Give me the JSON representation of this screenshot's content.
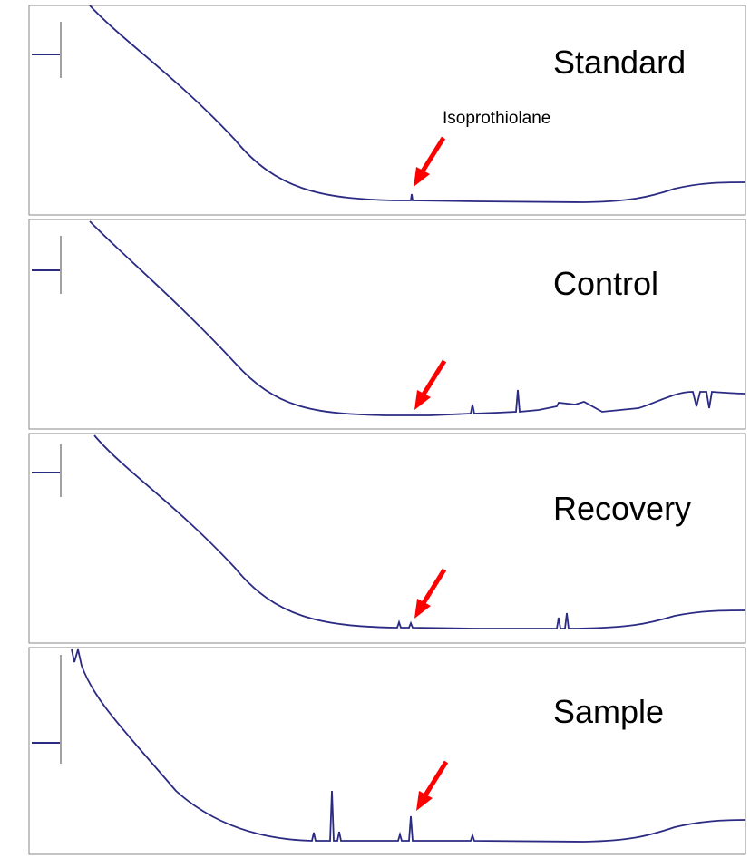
{
  "chart_data": [
    {
      "type": "line",
      "panel_label": "Standard",
      "annotation": "Isoprothiolane",
      "series": [
        {
          "values": [
            [
              0.25,
              150
            ],
            [
              0.4,
              148
            ],
            [
              0.8,
              130
            ],
            [
              1.6,
              98
            ],
            [
              2.6,
              62
            ],
            [
              3.4,
              45
            ],
            [
              4.3,
              35
            ],
            [
              5.2,
              33
            ],
            [
              6.3,
              33
            ],
            [
              6.6,
              33
            ],
            [
              6.7,
              37
            ],
            [
              6.8,
              33
            ],
            [
              7.6,
              34
            ],
            [
              8.8,
              34
            ],
            [
              9.4,
              37
            ],
            [
              10.0,
              43
            ],
            [
              10.9,
              45
            ],
            [
              11.0,
              45
            ]
          ]
        }
      ],
      "color": "#2b2b83",
      "arrow_color": "#ff0000",
      "arrow_at": 6.7
    },
    {
      "type": "line",
      "panel_label": "Control",
      "series": [
        {
          "values": [
            [
              0.25,
              150
            ],
            [
              0.4,
              148
            ],
            [
              0.8,
              130
            ],
            [
              1.6,
              98
            ],
            [
              2.6,
              62
            ],
            [
              3.4,
              45
            ],
            [
              4.3,
              35
            ],
            [
              5.2,
              33
            ],
            [
              6.3,
              33
            ],
            [
              7.6,
              34
            ],
            [
              8.8,
              34
            ],
            [
              9.4,
              37
            ],
            [
              10.0,
              43
            ],
            [
              10.9,
              45
            ],
            [
              11.0,
              45
            ]
          ]
        }
      ],
      "color": "#2b2b83",
      "arrow_color": "#ff0000",
      "arrow_at": 6.7
    },
    {
      "type": "line",
      "panel_label": "Recovery",
      "series": [
        {
          "values": [
            [
              0.25,
              150
            ],
            [
              0.4,
              148
            ],
            [
              0.8,
              130
            ],
            [
              1.6,
              98
            ],
            [
              2.6,
              62
            ],
            [
              3.4,
              45
            ],
            [
              4.3,
              35
            ],
            [
              5.2,
              33
            ],
            [
              6.3,
              33
            ],
            [
              6.4,
              35
            ],
            [
              6.5,
              33
            ],
            [
              6.6,
              33
            ],
            [
              6.7,
              35
            ],
            [
              6.8,
              33
            ],
            [
              7.6,
              34
            ],
            [
              8.8,
              34
            ],
            [
              9.4,
              37
            ],
            [
              10.0,
              43
            ],
            [
              10.9,
              45
            ],
            [
              11.0,
              45
            ]
          ]
        }
      ],
      "color": "#2b2b83",
      "arrow_color": "#ff0000",
      "arrow_at": 6.7
    },
    {
      "type": "line",
      "panel_label": "Sample",
      "series": [
        {
          "values": [
            [
              0.25,
              150
            ],
            [
              0.4,
              148
            ],
            [
              0.8,
              130
            ],
            [
              1.6,
              98
            ],
            [
              2.6,
              62
            ],
            [
              3.4,
              45
            ],
            [
              4.3,
              35
            ],
            [
              5.2,
              33
            ],
            [
              6.3,
              33
            ],
            [
              6.6,
              33
            ],
            [
              6.7,
              45
            ],
            [
              6.8,
              33
            ],
            [
              7.6,
              34
            ],
            [
              8.8,
              34
            ],
            [
              9.4,
              37
            ],
            [
              10.0,
              43
            ],
            [
              10.9,
              45
            ],
            [
              11.0,
              45
            ]
          ]
        }
      ],
      "color": "#2b2b83",
      "arrow_color": "#ff0000",
      "arrow_at": 6.7
    }
  ]
}
